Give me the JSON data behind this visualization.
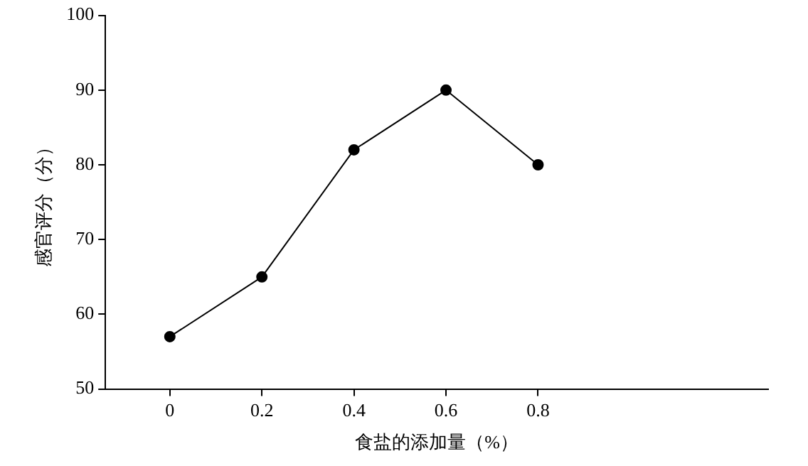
{
  "chart_data": {
    "type": "line",
    "xlabel": "食盐的添加量（%）",
    "ylabel": "感官评分（分）",
    "x": [
      0,
      0.2,
      0.4,
      0.6,
      0.8
    ],
    "series": [
      {
        "color": "#000000",
        "values": [
          57,
          65,
          82,
          90,
          80
        ]
      }
    ],
    "xlim": [
      -0.14,
      1.3
    ],
    "xticks": [
      0,
      0.2,
      0.4,
      0.6,
      0.8
    ],
    "ylim": [
      50,
      100
    ],
    "yticks": [
      50,
      60,
      70,
      80,
      90,
      100
    ],
    "grid": false,
    "legend": false,
    "marker": "circle",
    "line_style": "solid"
  }
}
